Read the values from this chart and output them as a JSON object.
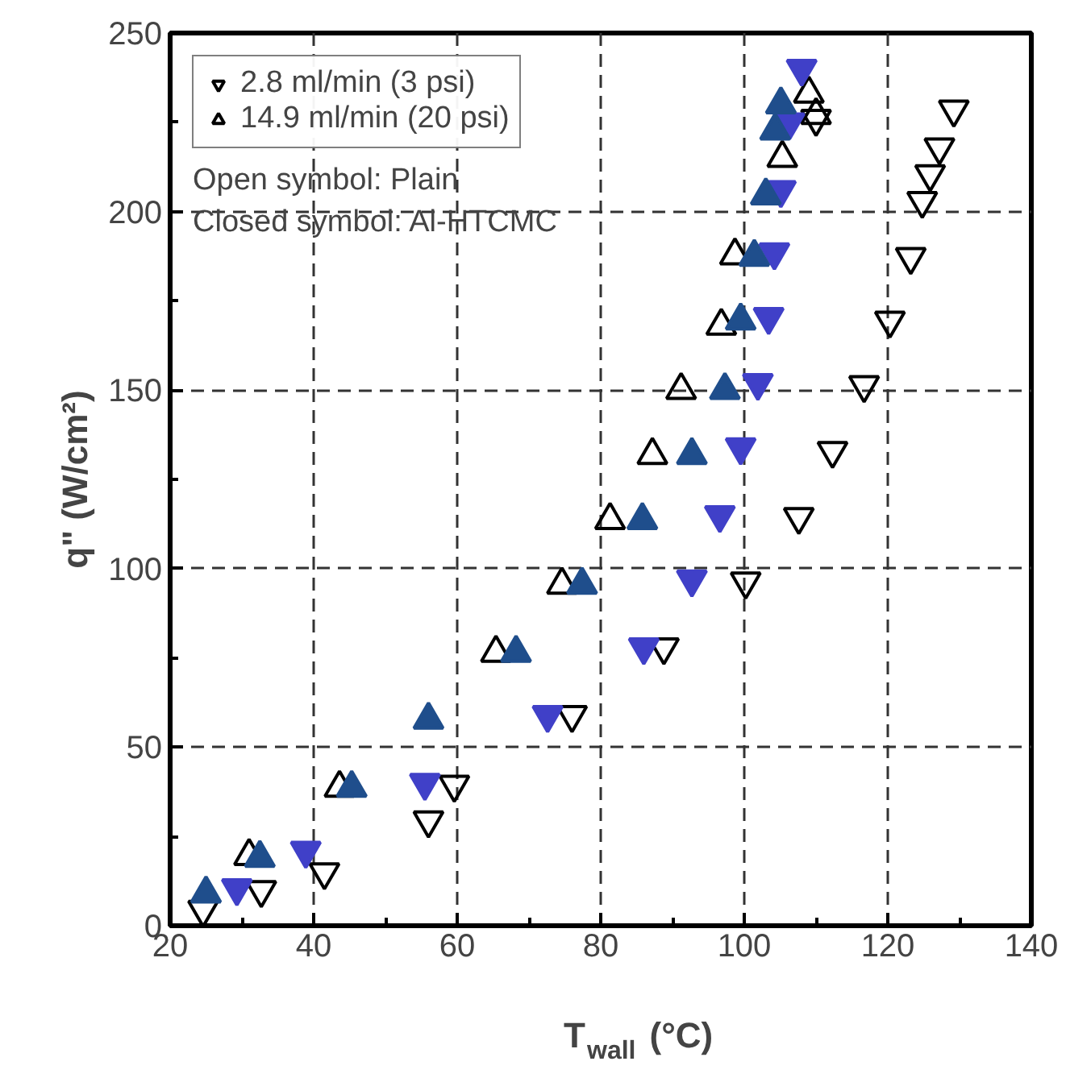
{
  "chart_data": {
    "type": "scatter",
    "xlabel": "T$_{wall}$ (°C)",
    "ylabel": "q\" (W/cm²)",
    "xlim": [
      20,
      140
    ],
    "ylim": [
      0,
      250
    ],
    "xticks": [
      20,
      40,
      60,
      80,
      100,
      120,
      140
    ],
    "yticks": [
      0,
      50,
      100,
      150,
      200,
      250
    ],
    "grid": true,
    "legend": "top left",
    "annotations": [
      "Open symbol: Plain",
      "Closed symbol: Al-HTCMC"
    ],
    "series": [
      {
        "name": "2.8 ml/min (3 psi)",
        "color": "#000000",
        "x": [
          24.6,
          32.7,
          41.5,
          56,
          59.6,
          76,
          88.8,
          100.2,
          107.6,
          112.3,
          116.7,
          120.3,
          123.2,
          124.8,
          125.9,
          127.2,
          129.2,
          110
        ],
        "values": [
          4.5,
          10,
          15,
          29.5,
          39.5,
          59,
          78,
          96.4,
          114.5,
          133,
          151.4,
          169.5,
          187.3,
          203,
          210.5,
          218,
          228.6,
          226
        ]
      },
      {
        "name": "14.9 ml/min (20 psi)",
        "color": "#000000",
        "marker": "triangle",
        "x": [
          31,
          43.6,
          65.4,
          74.6,
          81.3,
          87.2,
          91.2,
          96.8,
          98.7,
          105.3,
          110,
          109
        ],
        "values": [
          19.5,
          38.6,
          76.4,
          95.5,
          113.6,
          131.8,
          150,
          168,
          187.7,
          215,
          227,
          233
        ]
      },
      {
        "color": "#4040c8",
        "x": [
          29.3,
          38.9,
          55.5,
          72.6,
          86,
          92.7,
          96.6,
          99.5,
          101.9,
          103.4,
          104.2,
          105.1,
          106.3,
          108
        ],
        "values": [
          10.5,
          21,
          40,
          59,
          78,
          97,
          115,
          134,
          152,
          170.5,
          188.6,
          206,
          225,
          240
        ]
      },
      {
        "color": "#1f4e8c",
        "marker": "triangle",
        "x": [
          25,
          32.5,
          45.3,
          56,
          68.2,
          77.4,
          85.8,
          92.7,
          97.3,
          99.5,
          101.4,
          103,
          104.3,
          105.1
        ],
        "values": [
          9,
          19,
          38.6,
          57.7,
          76.4,
          95.5,
          113.6,
          131.8,
          150,
          169.5,
          187.3,
          204.5,
          222.7,
          230
        ]
      }
    ]
  }
}
